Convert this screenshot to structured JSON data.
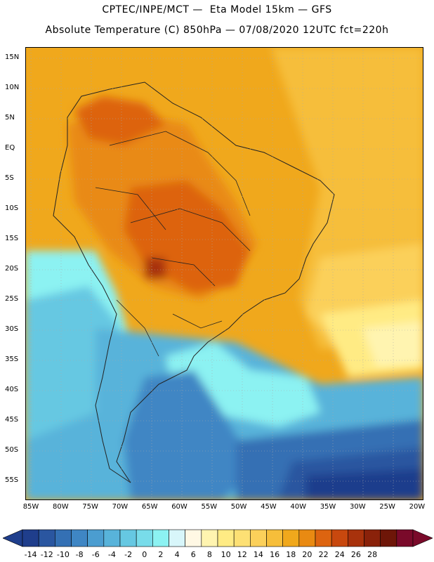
{
  "header": {
    "line1": "CPTEC/INPE/MCT —  Eta Model 15km — GFS",
    "line2": "Absolute Temperature (C) 850hPa — 07/08/2020 12UTC fct=220h"
  },
  "map": {
    "lat_labels": [
      "15N",
      "10N",
      "5N",
      "EQ",
      "5S",
      "10S",
      "15S",
      "20S",
      "25S",
      "30S",
      "35S",
      "40S",
      "45S",
      "50S",
      "55S"
    ],
    "lon_labels": [
      "85W",
      "80W",
      "75W",
      "70W",
      "65W",
      "60W",
      "55W",
      "50W",
      "45W",
      "40W",
      "35W",
      "30W",
      "25W",
      "20W"
    ],
    "grid": "dotted"
  },
  "colorbar": {
    "labels": [
      "-14",
      "-12",
      "-10",
      "-8",
      "-6",
      "-4",
      "-2",
      "0",
      "2",
      "4",
      "6",
      "8",
      "10",
      "12",
      "14",
      "16",
      "18",
      "20",
      "22",
      "24",
      "26",
      "28"
    ],
    "colors": [
      "#1f3e8c",
      "#2a56a0",
      "#3470b4",
      "#3f86c4",
      "#4b9dd0",
      "#58b3da",
      "#66c8e2",
      "#78dcea",
      "#8cf2f2",
      "#d8f6fa",
      "#fff8e4",
      "#fff4b0",
      "#ffeb84",
      "#fde074",
      "#fbd05a",
      "#f6be3a",
      "#f0a81c",
      "#e98a12",
      "#dd6410",
      "#c8480e",
      "#a8320c",
      "#8a220a",
      "#6e1608",
      "#7a0a2a"
    ]
  }
}
